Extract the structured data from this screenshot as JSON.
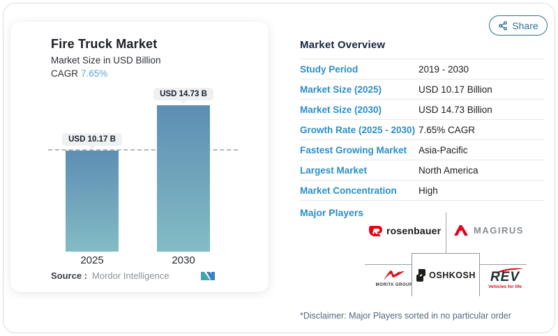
{
  "share": {
    "label": "Share"
  },
  "chart_card": {
    "title": "Fire Truck Market",
    "subtitle": "Market Size in USD Billion",
    "cagr_label": "CAGR",
    "cagr_value": "7.65%",
    "source_label": "Source :",
    "source_brand": "Mordor Intelligence"
  },
  "chart_data": {
    "type": "bar",
    "title": "Fire Truck Market",
    "ylabel": "Market Size in USD Billion",
    "unit": "USD Billion",
    "categories": [
      "2025",
      "2030"
    ],
    "values": [
      10.17,
      14.73
    ],
    "value_labels": [
      "USD 10.17 B",
      "USD 14.73 B"
    ],
    "cagr_percent": 7.65,
    "ylim": [
      0,
      15
    ],
    "grid": false,
    "dash_reference_value": 10.17,
    "bar_color_top": "#5d8eb3",
    "bar_color_bottom": "#83bcc4"
  },
  "overview": {
    "heading": "Market Overview",
    "rows": [
      {
        "label": "Study Period",
        "value": "2019 - 2030"
      },
      {
        "label": "Market Size (2025)",
        "value": "USD 10.17 Billion"
      },
      {
        "label": "Market Size (2030)",
        "value": "USD 14.73 Billion"
      },
      {
        "label": "Growth Rate (2025 - 2030)",
        "value": "7.65% CAGR"
      },
      {
        "label": "Fastest Growing Market",
        "value": "Asia-Pacific"
      },
      {
        "label": "Largest Market",
        "value": "North America"
      },
      {
        "label": "Market Concentration",
        "value": "High"
      }
    ],
    "major_players_label": "Major Players",
    "players": {
      "rosenbauer_text": "rosenbauer",
      "magirus_text": "MAGIRUS",
      "morita_text": "MORITA GROUP",
      "oshkosh_text": "OSHKOSH",
      "rev_text": "REV",
      "rev_tagline": "Vehicles for life"
    },
    "disclaimer": "*Disclaimer: Major Players sorted in no particular order"
  },
  "colors": {
    "accent_blue": "#2b8ec6",
    "cagr_blue": "#58a8d8",
    "heading_navy": "#15263e",
    "share_teal": "#33708f",
    "rosenbauer_red": "#e30613",
    "magirus_red": "#e2001a",
    "morita_red": "#d8101c",
    "oshkosh_black": "#1d1d1b",
    "rev_red": "#e30613",
    "mordor_teal": "#45a5a8",
    "mordor_blue": "#3d7fbf",
    "dashline_gray": "#b3b7ba"
  }
}
